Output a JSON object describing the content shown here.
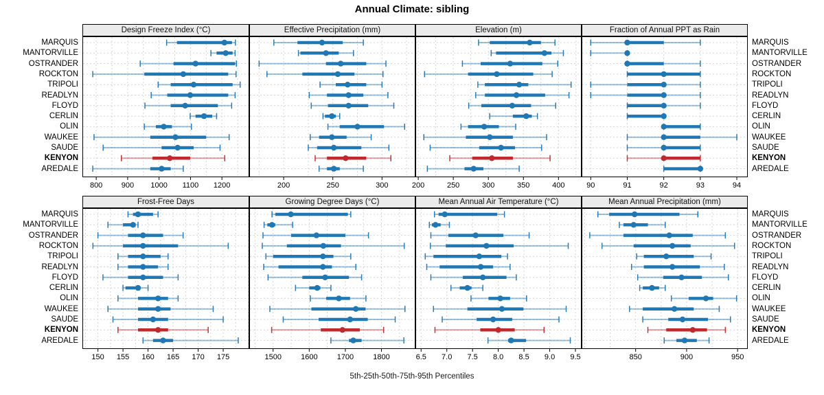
{
  "title": "Annual Climate: sibling",
  "footer": "5th-25th-50th-75th-95th Percentiles",
  "percentile_labels": [
    "5th",
    "25th",
    "50th",
    "75th",
    "95th"
  ],
  "highlight_location": "KENYON",
  "colors": {
    "series": "#1f77b4",
    "highlight": "#c02a2e",
    "header_bg": "#ebebeb",
    "grid": "#d4d4d4",
    "border": "#000000"
  },
  "locations": [
    "MARQUIS",
    "MANTORVILLE",
    "OSTRANDER",
    "ROCKTON",
    "TRIPOLI",
    "READLYN",
    "FLOYD",
    "CERLIN",
    "OLIN",
    "WAUKEE",
    "SAUDE",
    "KENYON",
    "AREDALE"
  ],
  "chart_data": [
    {
      "id": "design-freeze-index",
      "type": "scatter",
      "mark": "median dot with 5-25-75-95 percentile intervals",
      "title": "Design Freeze Index (°C)",
      "xlim": [
        756,
        1287
      ],
      "ticks": [
        800,
        900,
        1000,
        1100,
        1200
      ],
      "tick_labels": [
        "800",
        "900",
        "1000",
        "1100",
        "1200"
      ],
      "grid": [
        800,
        850,
        900,
        950,
        1000,
        1050,
        1100,
        1150,
        1200,
        1250
      ],
      "percentiles": [
        [
          1024,
          1057,
          1208,
          1232,
          1243
        ],
        [
          1165,
          1183,
          1212,
          1234,
          1242
        ],
        [
          940,
          1046,
          1116,
          1242,
          1246
        ],
        [
          789,
          953,
          1077,
          1220,
          1245
        ],
        [
          997,
          1037,
          1110,
          1234,
          1258
        ],
        [
          975,
          1026,
          1099,
          1220,
          1242
        ],
        [
          955,
          1037,
          1083,
          1187,
          1231
        ],
        [
          1099,
          1116,
          1143,
          1169,
          1183
        ],
        [
          953,
          990,
          1015,
          1041,
          1103
        ],
        [
          793,
          972,
          1052,
          1150,
          1223
        ],
        [
          822,
          1008,
          1059,
          1110,
          1194
        ],
        [
          880,
          979,
          1034,
          1099,
          1209
        ],
        [
          789,
          972,
          1008,
          1037,
          1077
        ]
      ]
    },
    {
      "id": "effective-precipitation",
      "type": "scatter",
      "mark": "median dot with 5-25-75-95 percentile intervals",
      "title": "Effective Precipitation (mm)",
      "xlim": [
        165,
        334
      ],
      "ticks": [
        200,
        250,
        300
      ],
      "tick_labels": [
        "200",
        "250",
        "300"
      ],
      "grid": [
        175,
        200,
        225,
        250,
        275,
        300,
        325
      ],
      "percentiles": [
        [
          190,
          214,
          239,
          260,
          281
        ],
        [
          215,
          217,
          243,
          256,
          271
        ],
        [
          175,
          243,
          258,
          284,
          304
        ],
        [
          183,
          219,
          255,
          272,
          301
        ],
        [
          237,
          253,
          265,
          284,
          300
        ],
        [
          226,
          244,
          266,
          281,
          306
        ],
        [
          228,
          245,
          266,
          286,
          312
        ],
        [
          240,
          242,
          249,
          253,
          257
        ],
        [
          245,
          257,
          275,
          302,
          323
        ],
        [
          227,
          236,
          249,
          264,
          289
        ],
        [
          225,
          234,
          251,
          279,
          307
        ],
        [
          232,
          244,
          263,
          284,
          309
        ],
        [
          236,
          244,
          251,
          257,
          281
        ]
      ]
    },
    {
      "id": "elevation",
      "type": "scatter",
      "mark": "median dot with 5-25-75-95 percentile intervals",
      "title": "Elevation (m)",
      "xlim": [
        196,
        433
      ],
      "ticks": [
        200,
        250,
        300,
        350,
        400
      ],
      "tick_labels": [
        "200",
        "250",
        "300",
        "350",
        "400"
      ],
      "grid": [
        200,
        225,
        250,
        275,
        300,
        325,
        350,
        375,
        400,
        425
      ],
      "percentiles": [
        [
          286,
          302,
          359,
          375,
          395
        ],
        [
          304,
          311,
          380,
          390,
          407
        ],
        [
          263,
          289,
          331,
          377,
          399
        ],
        [
          209,
          271,
          312,
          364,
          391
        ],
        [
          285,
          295,
          344,
          357,
          418
        ],
        [
          282,
          295,
          340,
          381,
          415
        ],
        [
          272,
          290,
          334,
          361,
          396
        ],
        [
          302,
          335,
          354,
          362,
          370
        ],
        [
          261,
          271,
          294,
          315,
          339
        ],
        [
          208,
          268,
          302,
          335,
          383
        ],
        [
          217,
          287,
          318,
          338,
          376
        ],
        [
          245,
          277,
          305,
          335,
          388
        ],
        [
          213,
          266,
          279,
          293,
          344
        ]
      ]
    },
    {
      "id": "fraction-annual-ppt-as-rain",
      "type": "scatter",
      "mark": "median dot with 5-25-75-95 percentile intervals",
      "title": "Fraction of Annual PPT as Rain",
      "xlim": [
        89.75,
        94.3
      ],
      "ticks": [
        90,
        91,
        92,
        93,
        94
      ],
      "tick_labels": [
        "90",
        "91",
        "92",
        "93",
        "94"
      ],
      "grid": [
        90,
        91,
        92,
        93,
        94
      ],
      "percentiles": [
        [
          90,
          91,
          91,
          92,
          93
        ],
        [
          90,
          91,
          91,
          91,
          91
        ],
        [
          91,
          91,
          91,
          92,
          93
        ],
        [
          91,
          91,
          92,
          93,
          93
        ],
        [
          90,
          91,
          92,
          92,
          93
        ],
        [
          90,
          91,
          92,
          92,
          93
        ],
        [
          91,
          91,
          92,
          92,
          93
        ],
        [
          91,
          91,
          92,
          92,
          92
        ],
        [
          92,
          92,
          92,
          93,
          93
        ],
        [
          91,
          92,
          92,
          93,
          94
        ],
        [
          91,
          92,
          92,
          93,
          93
        ],
        [
          91,
          92,
          92,
          93,
          93
        ],
        [
          92,
          92,
          93,
          93,
          93
        ]
      ]
    },
    {
      "id": "frost-free-days",
      "type": "scatter",
      "mark": "median dot with 5-25-75-95 percentile intervals",
      "title": "Frost-Free Days",
      "xlim": [
        146.9,
        180.2
      ],
      "ticks": [
        150,
        155,
        160,
        165,
        170,
        175
      ],
      "tick_labels": [
        "150",
        "155",
        "160",
        "165",
        "170",
        "175"
      ],
      "grid": [
        147.5,
        150,
        152.5,
        155,
        157.5,
        160,
        162.5,
        165,
        167.5,
        170,
        172.5,
        175,
        177.5,
        180
      ],
      "percentiles": [
        [
          156,
          157,
          158,
          161,
          162
        ],
        [
          152,
          155,
          157,
          157.5,
          158
        ],
        [
          150,
          156,
          159,
          163,
          167
        ],
        [
          149,
          155,
          159,
          166,
          176
        ],
        [
          154,
          156,
          159,
          162.5,
          164
        ],
        [
          154,
          156,
          159,
          162,
          164
        ],
        [
          151,
          156,
          159,
          163,
          166
        ],
        [
          155,
          155.5,
          158,
          158.5,
          160
        ],
        [
          154,
          158,
          162,
          164,
          166
        ],
        [
          152,
          158,
          162,
          164.5,
          173
        ],
        [
          153,
          158,
          161,
          164,
          175
        ],
        [
          154,
          158,
          162,
          164,
          172
        ],
        [
          159,
          161,
          163,
          165,
          178
        ]
      ]
    },
    {
      "id": "growing-degree-days",
      "type": "scatter",
      "mark": "median dot with 5-25-75-95 percentile intervals",
      "title": "Growing Degree Days (°C)",
      "xlim": [
        1434,
        1894
      ],
      "ticks": [
        1500,
        1600,
        1700,
        1800
      ],
      "tick_labels": [
        "1500",
        "1600",
        "1700",
        "1800"
      ],
      "grid": [
        1450,
        1500,
        1550,
        1600,
        1650,
        1700,
        1750,
        1800,
        1850
      ],
      "percentiles": [
        [
          1497,
          1506,
          1549,
          1707,
          1715
        ],
        [
          1475,
          1484,
          1497,
          1506,
          1554
        ],
        [
          1472,
          1550,
          1620,
          1700,
          1764
        ],
        [
          1470,
          1538,
          1639,
          1688,
          1863
        ],
        [
          1480,
          1500,
          1638,
          1667,
          1715
        ],
        [
          1474,
          1515,
          1638,
          1663,
          1729
        ],
        [
          1486,
          1581,
          1644,
          1710,
          1745
        ],
        [
          1562,
          1600,
          1622,
          1631,
          1660
        ],
        [
          1603,
          1647,
          1682,
          1713,
          1757
        ],
        [
          1491,
          1606,
          1729,
          1756,
          1865
        ],
        [
          1528,
          1626,
          1713,
          1762,
          1838
        ],
        [
          1496,
          1632,
          1692,
          1740,
          1806
        ],
        [
          1660,
          1710,
          1722,
          1745,
          1862
        ]
      ]
    },
    {
      "id": "mean-annual-air-temperature",
      "type": "scatter",
      "mark": "median dot with 5-25-75-95 percentile intervals",
      "title": "Mean Annual Air Temperature (°C)",
      "xlim": [
        6.39,
        9.62
      ],
      "ticks": [
        6.5,
        7.0,
        7.5,
        8.0,
        8.5,
        9.0,
        9.5
      ],
      "tick_labels": [
        "6.5",
        "7.0",
        "7.5",
        "8.0",
        "8.5",
        "9.0",
        "9.5"
      ],
      "grid": [
        6.5,
        7.0,
        7.5,
        8.0,
        8.5,
        9.0,
        9.5
      ],
      "percentiles": [
        [
          6.76,
          6.84,
          6.96,
          7.98,
          8.12
        ],
        [
          6.66,
          6.71,
          6.78,
          6.88,
          7.05
        ],
        [
          6.69,
          7.03,
          7.56,
          8.1,
          8.6
        ],
        [
          6.68,
          6.98,
          7.77,
          8.3,
          9.36
        ],
        [
          6.58,
          6.74,
          7.63,
          8.06,
          8.18
        ],
        [
          6.61,
          6.86,
          7.66,
          7.9,
          8.23
        ],
        [
          6.69,
          7.31,
          7.7,
          8.16,
          8.35
        ],
        [
          7.08,
          7.25,
          7.4,
          7.48,
          7.7
        ],
        [
          7.47,
          7.81,
          8.04,
          8.23,
          8.55
        ],
        [
          6.74,
          7.4,
          8.07,
          8.49,
          9.32
        ],
        [
          6.91,
          7.58,
          7.9,
          8.27,
          9.18
        ],
        [
          6.77,
          7.65,
          8.0,
          8.32,
          8.89
        ],
        [
          7.8,
          8.19,
          8.25,
          8.54,
          9.4
        ]
      ]
    },
    {
      "id": "mean-annual-precipitation",
      "type": "scatter",
      "mark": "median dot with 5-25-75-95 percentile intervals",
      "title": "Mean Annual Precipitation (mm)",
      "xlim": [
        797,
        960
      ],
      "ticks": [
        850,
        900,
        950
      ],
      "tick_labels": [
        "850",
        "900",
        "950"
      ],
      "grid": [
        800,
        825,
        850,
        875,
        900,
        925,
        950
      ],
      "percentiles": [
        [
          813,
          824,
          849,
          893,
          911
        ],
        [
          834,
          838,
          848,
          862,
          879
        ],
        [
          805,
          838,
          883,
          906,
          938
        ],
        [
          817,
          848,
          886,
          904,
          947
        ],
        [
          851,
          858,
          880,
          907,
          924
        ],
        [
          846,
          858,
          886,
          913,
          937
        ],
        [
          852,
          877,
          895,
          915,
          941
        ],
        [
          854,
          857,
          866,
          873,
          879
        ],
        [
          885,
          902,
          919,
          926,
          949
        ],
        [
          844,
          857,
          888,
          907,
          932
        ],
        [
          857,
          882,
          896,
          921,
          943
        ],
        [
          862,
          880,
          906,
          920,
          938
        ],
        [
          878,
          890,
          898,
          910,
          922
        ]
      ]
    }
  ]
}
